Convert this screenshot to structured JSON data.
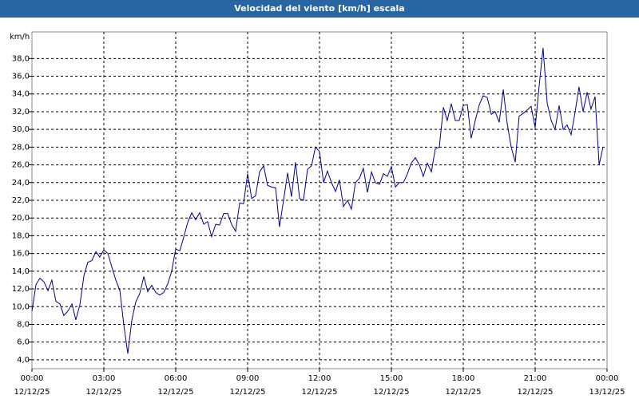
{
  "chart_data": {
    "type": "line",
    "title": "Velocidad del viento [km/h] escala",
    "y_label": "km/h",
    "xlim": [
      0,
      24
    ],
    "ylim": [
      3,
      41
    ],
    "grid": true,
    "xticks": [
      {
        "value": 0,
        "label": "00:00"
      },
      {
        "value": 3,
        "label": "03:00"
      },
      {
        "value": 6,
        "label": "06:00"
      },
      {
        "value": 9,
        "label": "09:00"
      },
      {
        "value": 12,
        "label": "12:00"
      },
      {
        "value": 15,
        "label": "15:00"
      },
      {
        "value": 18,
        "label": "18:00"
      },
      {
        "value": 21,
        "label": "21:00"
      },
      {
        "value": 24,
        "label": "00:00"
      }
    ],
    "xtick_dates": [
      "12/12/25",
      "12/12/25",
      "12/12/25",
      "12/12/25",
      "12/12/25",
      "12/12/25",
      "12/12/25",
      "12/12/25",
      "13/12/25"
    ],
    "yticks": [
      {
        "value": 4,
        "label": "4,0"
      },
      {
        "value": 6,
        "label": "6,0"
      },
      {
        "value": 8,
        "label": "8,0"
      },
      {
        "value": 10,
        "label": "10,0"
      },
      {
        "value": 12,
        "label": "12,0"
      },
      {
        "value": 14,
        "label": "14,0"
      },
      {
        "value": 16,
        "label": "16,0"
      },
      {
        "value": 18,
        "label": "18,0"
      },
      {
        "value": 20,
        "label": "20,0"
      },
      {
        "value": 22,
        "label": "22,0"
      },
      {
        "value": 24,
        "label": "24,0"
      },
      {
        "value": 26,
        "label": "26,0"
      },
      {
        "value": 28,
        "label": "28,0"
      },
      {
        "value": 30,
        "label": "30,0"
      },
      {
        "value": 32,
        "label": "32,0"
      },
      {
        "value": 34,
        "label": "34,0"
      },
      {
        "value": 36,
        "label": "36,0"
      },
      {
        "value": 38,
        "label": "38,0"
      }
    ],
    "x": [
      0,
      0.17,
      0.33,
      0.5,
      0.67,
      0.83,
      1,
      1.17,
      1.33,
      1.5,
      1.67,
      1.83,
      2,
      2.17,
      2.33,
      2.5,
      2.67,
      2.83,
      3,
      3.17,
      3.33,
      3.5,
      3.67,
      3.83,
      4,
      4.17,
      4.33,
      4.5,
      4.67,
      4.83,
      5,
      5.17,
      5.33,
      5.5,
      5.67,
      5.83,
      6,
      6.17,
      6.33,
      6.5,
      6.67,
      6.83,
      7,
      7.17,
      7.33,
      7.5,
      7.67,
      7.83,
      8,
      8.17,
      8.33,
      8.5,
      8.67,
      8.83,
      9,
      9.17,
      9.33,
      9.5,
      9.67,
      9.83,
      10,
      10.17,
      10.33,
      10.5,
      10.67,
      10.83,
      11,
      11.17,
      11.33,
      11.5,
      11.67,
      11.83,
      12,
      12.17,
      12.33,
      12.5,
      12.67,
      12.83,
      13,
      13.17,
      13.33,
      13.5,
      13.67,
      13.83,
      14,
      14.17,
      14.33,
      14.5,
      14.67,
      14.83,
      15,
      15.17,
      15.33,
      15.5,
      15.67,
      15.83,
      16,
      16.17,
      16.33,
      16.5,
      16.67,
      16.83,
      17,
      17.17,
      17.33,
      17.5,
      17.67,
      17.83,
      18,
      18.17,
      18.33,
      18.5,
      18.67,
      18.83,
      19,
      19.17,
      19.33,
      19.5,
      19.67,
      19.83,
      20,
      20.17,
      20.33,
      20.5,
      20.67,
      20.83,
      21,
      21.17,
      21.33,
      21.5,
      21.67,
      21.83,
      22,
      22.17,
      22.33,
      22.5,
      22.67,
      22.83,
      23,
      23.17,
      23.33,
      23.5,
      23.67,
      23.83
    ],
    "series": [
      {
        "color": "#00008b",
        "values": [
          9.5,
          12.5,
          13.2,
          12.8,
          11.8,
          13.0,
          10.6,
          10.3,
          9.0,
          9.5,
          10.3,
          8.5,
          10.2,
          13.5,
          15.0,
          15.2,
          16.2,
          15.6,
          16.4,
          16.0,
          14.5,
          13.0,
          11.8,
          8.0,
          4.7,
          8.5,
          10.5,
          11.5,
          13.4,
          11.7,
          12.4,
          11.6,
          11.3,
          11.6,
          12.6,
          14.0,
          16.5,
          16.3,
          17.8,
          19.5,
          20.6,
          19.8,
          20.6,
          19.3,
          19.6,
          17.9,
          19.3,
          19.2,
          20.5,
          20.5,
          19.3,
          18.5,
          21.7,
          21.6,
          25.0,
          22.2,
          22.5,
          25.2,
          25.9,
          23.7,
          23.5,
          23.4,
          19.0,
          22.0,
          25.1,
          22.4,
          26.3,
          22.2,
          22.0,
          25.5,
          25.9,
          28.0,
          27.5,
          24.0,
          25.3,
          24.0,
          23.0,
          24.3,
          21.3,
          22.0,
          21.0,
          24.0,
          24.5,
          25.6,
          22.9,
          25.2,
          24.0,
          23.8,
          25.0,
          24.7,
          25.8,
          23.5,
          24.0,
          24.0,
          25.0,
          26.2,
          26.8,
          26.0,
          24.7,
          26.2,
          25.2,
          27.8,
          28.0,
          32.5,
          31.0,
          32.9,
          31.0,
          31.0,
          32.7,
          32.8,
          29.0,
          31.0,
          32.8,
          33.8,
          33.6,
          31.7,
          32.0,
          30.8,
          34.5,
          30.7,
          28.0,
          26.3,
          31.5,
          31.8,
          32.2,
          32.6,
          30.2,
          35.0,
          39.2,
          33.0,
          31.0,
          30.0,
          32.7,
          30.0,
          30.5,
          29.4,
          32.0,
          34.8,
          32.0,
          34.2,
          32.3,
          33.7,
          26.0,
          28.0
        ]
      }
    ]
  }
}
